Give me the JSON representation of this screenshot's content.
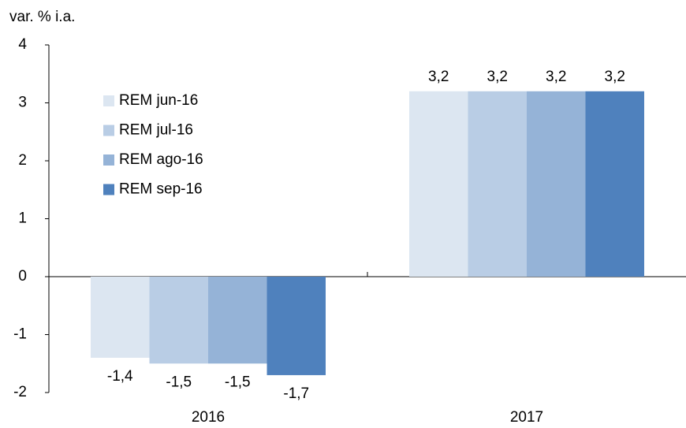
{
  "chart_data": {
    "type": "bar",
    "y_axis_label": "var. % i.a.",
    "categories": [
      "2016",
      "2017"
    ],
    "series": [
      {
        "name": "REM jun-16",
        "color": "#dce6f1",
        "values": [
          -1.4,
          3.2
        ],
        "value_labels": [
          "-1,4",
          "3,2"
        ]
      },
      {
        "name": "REM jul-16",
        "color": "#b9cde5",
        "values": [
          -1.5,
          3.2
        ],
        "value_labels": [
          "-1,5",
          "3,2"
        ]
      },
      {
        "name": "REM ago-16",
        "color": "#95b3d7",
        "values": [
          -1.5,
          3.2
        ],
        "value_labels": [
          "-1,5",
          "3,2"
        ]
      },
      {
        "name": "REM sep-16",
        "color": "#4f81bd",
        "values": [
          -1.7,
          3.2
        ],
        "value_labels": [
          "-1,7",
          "3,2"
        ]
      }
    ],
    "ylim": [
      -2,
      4
    ],
    "yticks": [
      -2,
      -1,
      0,
      1,
      2,
      3,
      4
    ],
    "grid": false,
    "legend": "upper left"
  }
}
